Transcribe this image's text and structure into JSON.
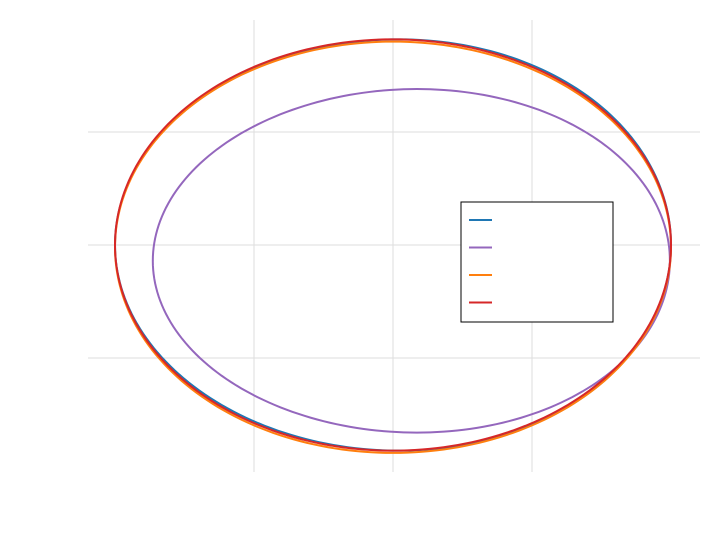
{
  "chart_data": {
    "type": "line",
    "title": "",
    "xlabel": "",
    "ylabel": "",
    "xlim": [
      -1,
      1.68
    ],
    "ylim": [
      -1.0,
      1.0
    ],
    "grid": true,
    "x_gridlines": [
      -0.5,
      0,
      0.5
    ],
    "y_gridlines": [
      -0.5,
      0,
      0.5
    ],
    "legend": {
      "placement": "right-center",
      "entries": [
        "",
        "",
        "",
        ""
      ]
    },
    "series": [
      {
        "color": "#1f77b4",
        "cx": 0.0,
        "cy": 0.0,
        "rx": 1.0,
        "ry": 0.91,
        "shift": 0.02
      },
      {
        "color": "#9467bd",
        "cx": 0.066,
        "cy": -0.07,
        "rx": 0.93,
        "ry": 0.76,
        "shift": 0.02
      },
      {
        "color": "#ff7f0e",
        "cx": 0.0,
        "cy": -0.01,
        "rx": 1.0,
        "ry": 0.91,
        "shift": 0.0
      },
      {
        "color": "#d62728",
        "cx": 0.0,
        "cy": 0.0,
        "rx": 1.0,
        "ry": 0.91,
        "shift": 0.0
      }
    ]
  }
}
